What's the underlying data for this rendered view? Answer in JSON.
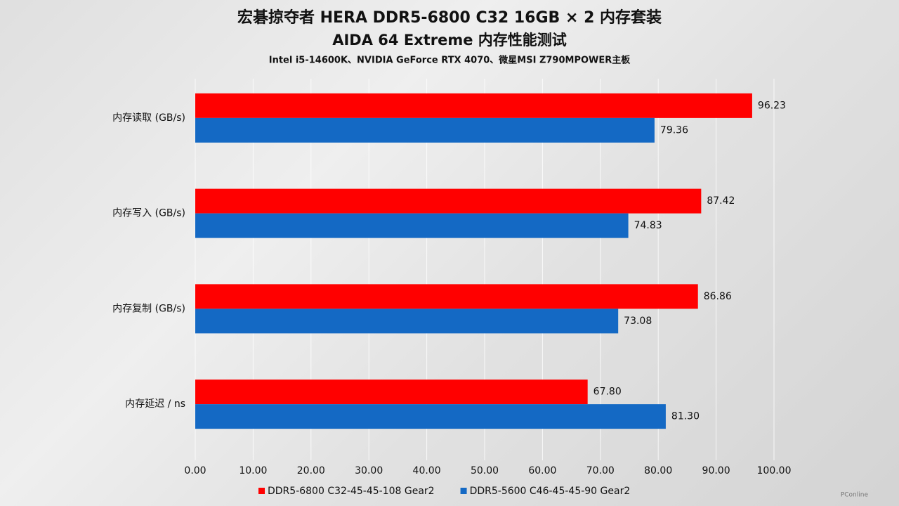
{
  "chart_data": {
    "type": "hbar",
    "title": "宏碁掠夺者 HERA DDR5-6800 C32 16GB × 2 内存套装",
    "subtitle": "AIDA 64 Extreme 内存性能测试",
    "caption": "Intel i5-14600K、NVIDIA GeForce RTX 4070、微星MSI Z790MPOWER主板",
    "categories": [
      "内存读取 (GB/s)",
      "内存写入 (GB/s)",
      "内存复制 (GB/s)",
      "内存延迟 / ns"
    ],
    "series": [
      {
        "name": "DDR5-6800 C32-45-45-108 Gear2",
        "color": "#ff0000",
        "values": [
          96.23,
          87.42,
          86.86,
          67.8
        ],
        "value_labels": [
          "96.23",
          "87.42",
          "86.86",
          "67.80"
        ]
      },
      {
        "name": "DDR5-5600 C46-45-45-90 Gear2",
        "color": "#1469c4",
        "values": [
          79.36,
          74.83,
          73.08,
          81.3
        ],
        "value_labels": [
          "79.36",
          "74.83",
          "73.08",
          "81.30"
        ]
      }
    ],
    "xlim": [
      0,
      100
    ],
    "xticks": [
      {
        "value": 0,
        "label": "0.00"
      },
      {
        "value": 10,
        "label": "10.00"
      },
      {
        "value": 20,
        "label": "20.00"
      },
      {
        "value": 30,
        "label": "30.00"
      },
      {
        "value": 40,
        "label": "40.00"
      },
      {
        "value": 50,
        "label": "50.00"
      },
      {
        "value": 60,
        "label": "60.00"
      },
      {
        "value": 70,
        "label": "70.00"
      },
      {
        "value": 80,
        "label": "80.00"
      },
      {
        "value": 90,
        "label": "90.00"
      },
      {
        "value": 100,
        "label": "100.00"
      }
    ],
    "grid": true,
    "legend": "bottom",
    "watermark": "PConline"
  }
}
